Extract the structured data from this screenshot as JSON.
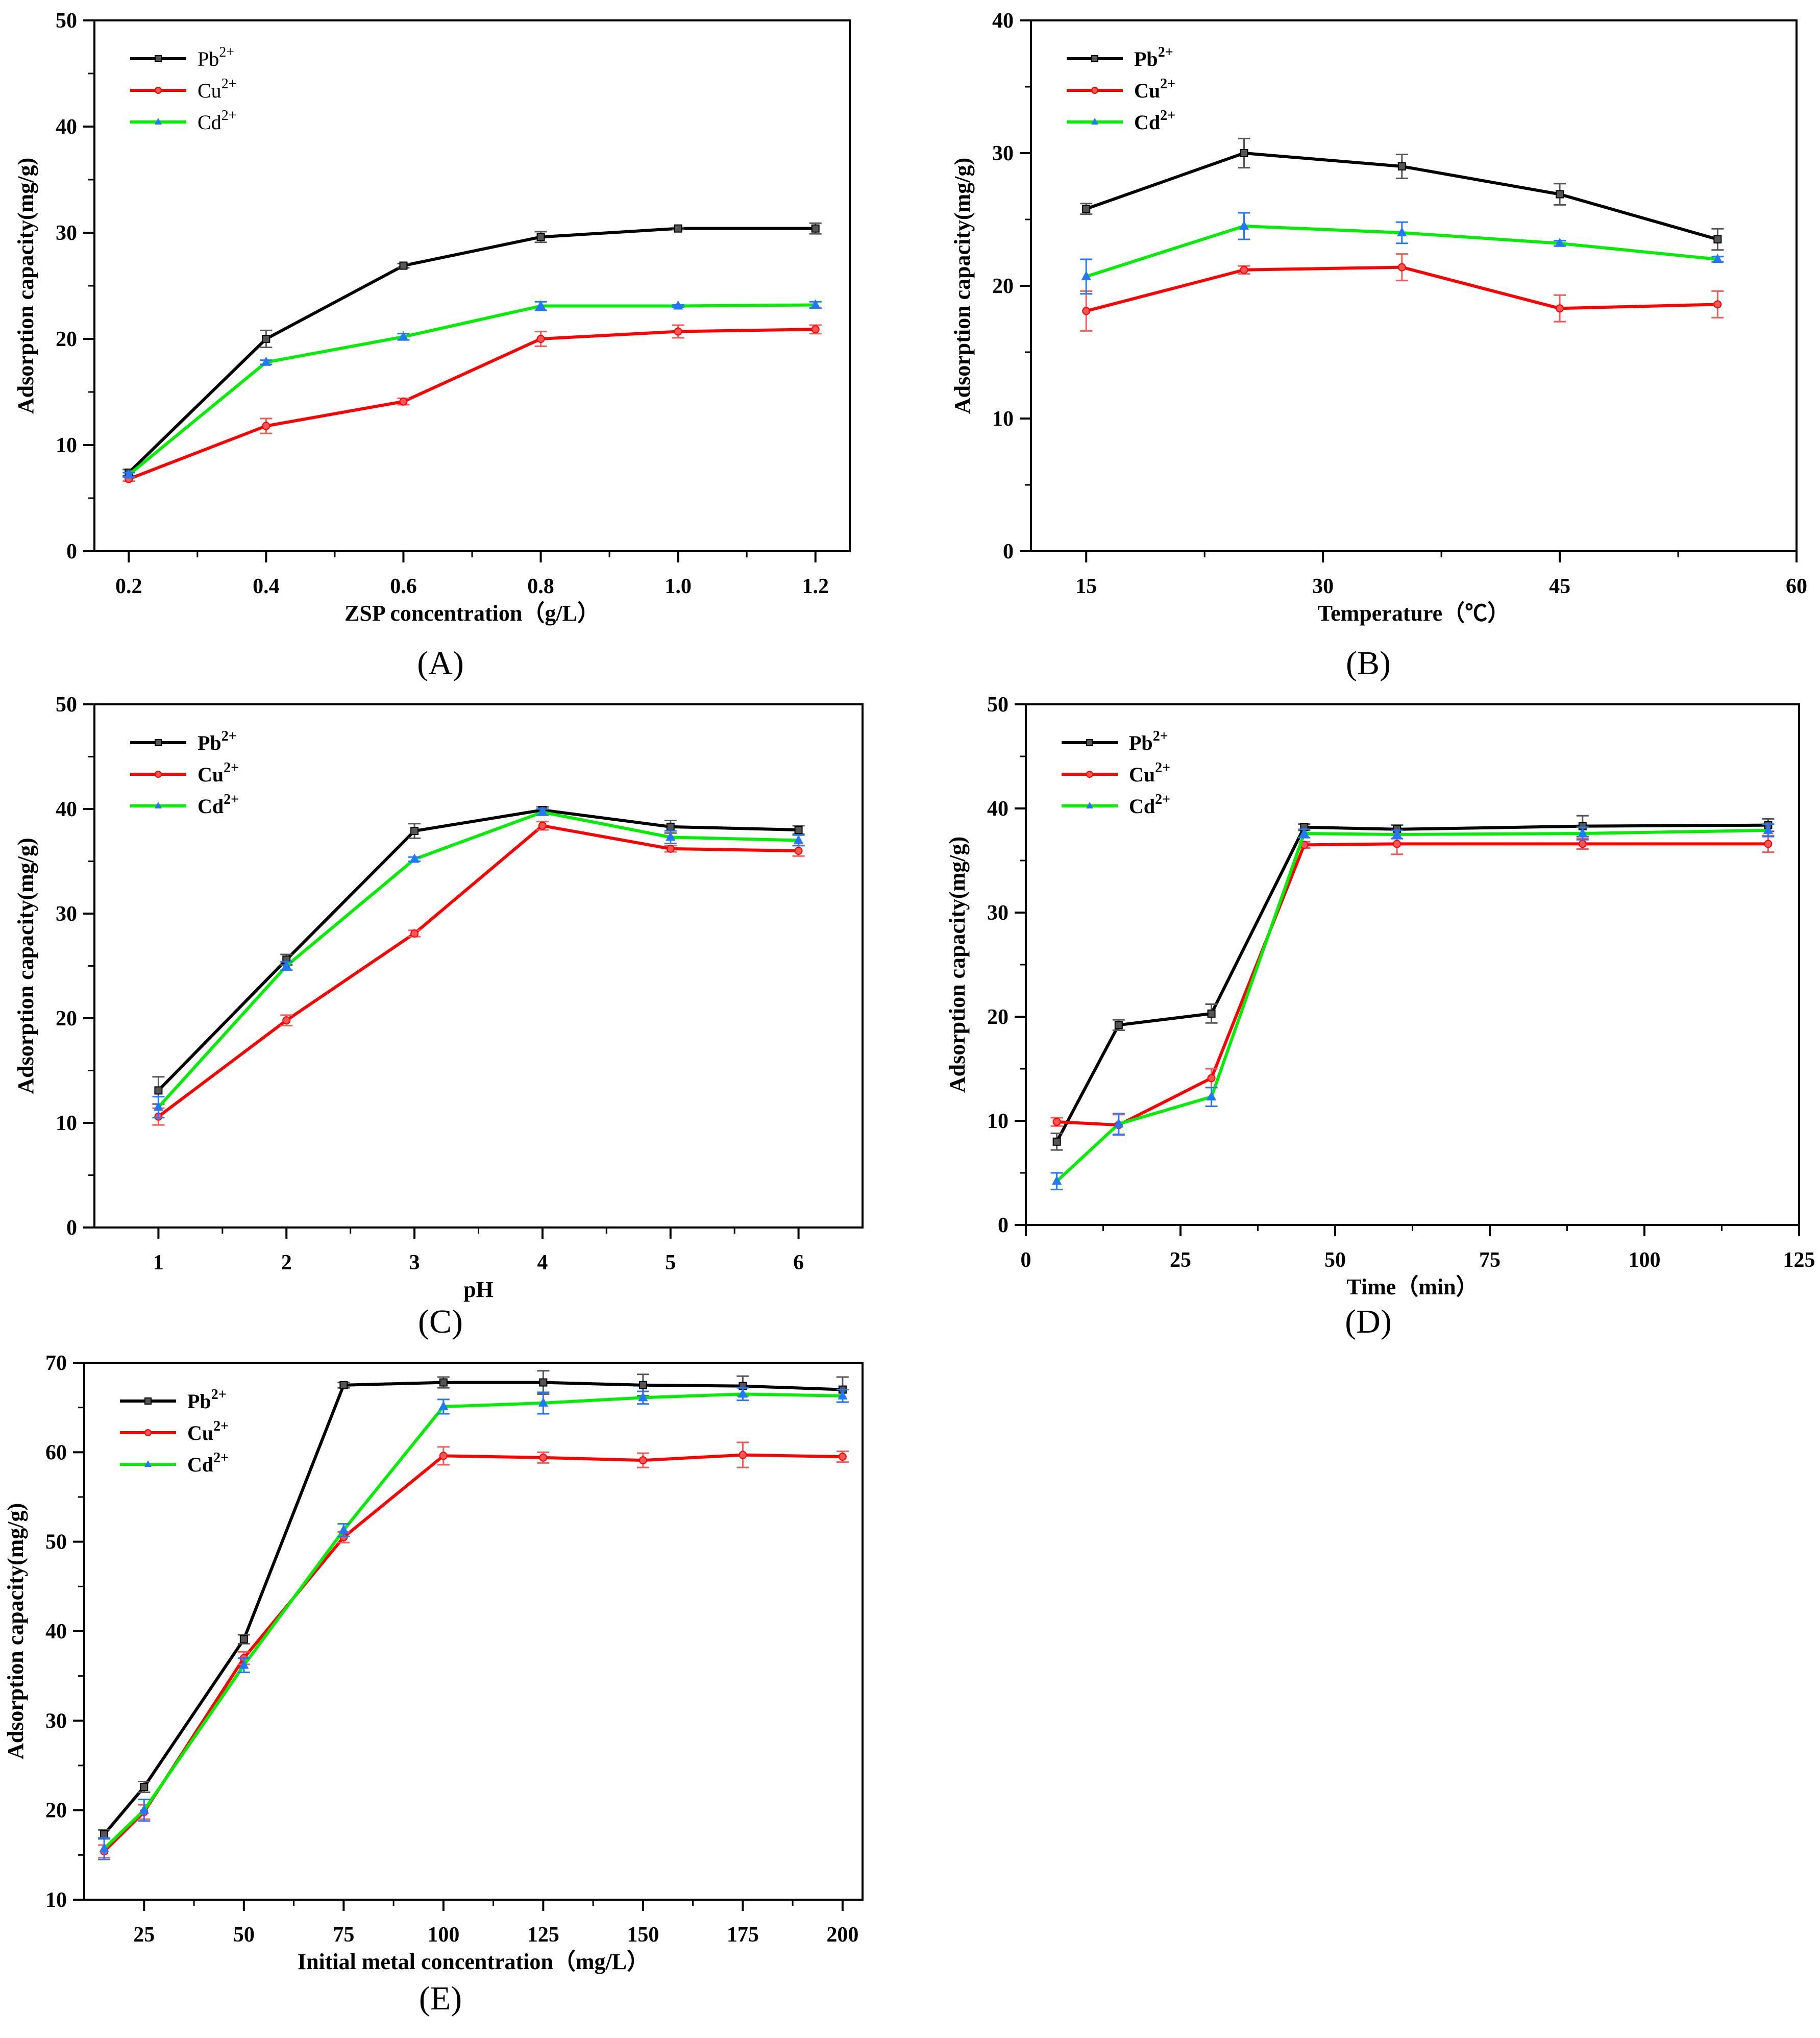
{
  "figure": {
    "panel_labels": [
      "(A)",
      "(B)",
      "(C)",
      "(D)",
      "(E)"
    ]
  },
  "colors": {
    "Pb": "#000000",
    "Cu": "#ff0000",
    "Cd": "#00ee00",
    "errCu": "#ff5555",
    "errCd": "#2277ff",
    "errPb": "#555555"
  },
  "chart_data": [
    {
      "id": "A",
      "type": "line",
      "xlabel": "ZSP concentration（g/L）",
      "ylabel": "Adsorption capacity(mg/g)",
      "xlim": [
        0.15,
        1.25
      ],
      "ylim": [
        0,
        50
      ],
      "xticks": [
        0.2,
        0.4,
        0.6,
        0.8,
        1.0,
        1.2
      ],
      "xtick_labels": [
        "0.2",
        "0.4",
        "0.6",
        "0.8",
        "1.0",
        "1.2"
      ],
      "yticks": [
        0,
        10,
        20,
        30,
        40,
        50
      ],
      "ytick_labels": [
        "0",
        "10",
        "20",
        "30",
        "40",
        "50"
      ],
      "legend": {
        "position": "top-left",
        "bold": false,
        "entries": [
          {
            "base": "Pb",
            "sup": "2+"
          },
          {
            "base": "Cu",
            "sup": "2+"
          },
          {
            "base": "Cd",
            "sup": "2+"
          }
        ]
      },
      "x": [
        0.2,
        0.4,
        0.6,
        0.8,
        1.0,
        1.2
      ],
      "series": [
        {
          "name": "Pb2+",
          "marker": "square",
          "values": [
            7.4,
            20.0,
            26.9,
            29.6,
            30.4,
            30.4
          ],
          "err": [
            0.3,
            0.8,
            0.2,
            0.5,
            0.1,
            0.5
          ]
        },
        {
          "name": "Cu2+",
          "marker": "circle",
          "values": [
            6.8,
            11.8,
            14.1,
            20.0,
            20.7,
            20.9
          ],
          "err": [
            0.2,
            0.7,
            0.3,
            0.7,
            0.6,
            0.4
          ]
        },
        {
          "name": "Cd2+",
          "marker": "triangle",
          "values": [
            7.2,
            17.8,
            20.2,
            23.1,
            23.1,
            23.2
          ],
          "err": [
            0.2,
            0.2,
            0.3,
            0.4,
            0.1,
            0.3
          ]
        }
      ]
    },
    {
      "id": "B",
      "type": "line",
      "xlabel": "Temperature（℃）",
      "ylabel": "Adsorption capacity(mg/g)",
      "xlim": [
        11.5,
        60
      ],
      "ylim": [
        0,
        40
      ],
      "xticks": [
        15,
        30,
        45,
        60
      ],
      "xtick_labels": [
        "15",
        "30",
        "45",
        "60"
      ],
      "yticks": [
        0,
        10,
        20,
        30,
        40
      ],
      "ytick_labels": [
        "0",
        "10",
        "20",
        "30",
        "40"
      ],
      "legend": {
        "position": "top-left",
        "bold": true,
        "entries": [
          {
            "base": "Pb",
            "sup": "2+"
          },
          {
            "base": "Cu",
            "sup": "2+"
          },
          {
            "base": "Cd",
            "sup": "2+"
          }
        ]
      },
      "x": [
        15,
        25,
        35,
        45,
        55
      ],
      "series": [
        {
          "name": "Pb2+",
          "marker": "square",
          "values": [
            25.8,
            30.0,
            29.0,
            26.9,
            23.5
          ],
          "err": [
            0.4,
            1.1,
            0.9,
            0.8,
            0.8
          ]
        },
        {
          "name": "Cu2+",
          "marker": "circle",
          "values": [
            18.1,
            21.2,
            21.4,
            18.3,
            18.6
          ],
          "err": [
            1.5,
            0.3,
            1.0,
            1.0,
            1.0
          ]
        },
        {
          "name": "Cd2+",
          "marker": "triangle",
          "values": [
            20.7,
            24.5,
            24.0,
            23.2,
            22.0
          ],
          "err": [
            1.3,
            1.0,
            0.8,
            0.2,
            0.2
          ]
        }
      ]
    },
    {
      "id": "C",
      "type": "line",
      "xlabel": "pH",
      "ylabel": "Adsorption capacity(mg/g)",
      "xlim": [
        0.5,
        6.5
      ],
      "ylim": [
        0,
        50
      ],
      "xticks": [
        1,
        2,
        3,
        4,
        5,
        6
      ],
      "xtick_labels": [
        "1",
        "2",
        "3",
        "4",
        "5",
        "6"
      ],
      "yticks": [
        0,
        10,
        20,
        30,
        40,
        50
      ],
      "ytick_labels": [
        "0",
        "10",
        "20",
        "30",
        "40",
        "50"
      ],
      "legend": {
        "position": "top-left",
        "bold": true,
        "entries": [
          {
            "base": "Pb",
            "sup": "2+"
          },
          {
            "base": "Cu",
            "sup": "2+"
          },
          {
            "base": "Cd",
            "sup": "2+"
          }
        ]
      },
      "x": [
        1,
        2,
        3,
        4,
        5,
        6
      ],
      "series": [
        {
          "name": "Pb2+",
          "marker": "square",
          "values": [
            13.1,
            25.6,
            37.9,
            39.9,
            38.3,
            38.0
          ],
          "err": [
            1.3,
            0.5,
            0.7,
            0.3,
            0.6,
            0.4
          ]
        },
        {
          "name": "Cu2+",
          "marker": "circle",
          "values": [
            10.6,
            19.8,
            28.1,
            38.4,
            36.2,
            36.0
          ],
          "err": [
            0.8,
            0.5,
            0.3,
            0.4,
            0.3,
            0.5
          ]
        },
        {
          "name": "Cd2+",
          "marker": "triangle",
          "values": [
            11.5,
            25.0,
            35.2,
            39.7,
            37.3,
            37.0
          ],
          "err": [
            1.0,
            0.4,
            0.2,
            0.3,
            0.6,
            0.5
          ]
        }
      ]
    },
    {
      "id": "D",
      "type": "line",
      "xlabel": "Time（min）",
      "ylabel": "Adsorption capacity(mg/g)",
      "xlim": [
        0,
        125
      ],
      "ylim": [
        0,
        50
      ],
      "xticks": [
        0,
        25,
        50,
        75,
        100,
        125
      ],
      "xtick_labels": [
        "0",
        "25",
        "50",
        "75",
        "100",
        "125"
      ],
      "yticks": [
        0,
        10,
        20,
        30,
        40,
        50
      ],
      "ytick_labels": [
        "0",
        "10",
        "20",
        "30",
        "40",
        "50"
      ],
      "legend": {
        "position": "top-left",
        "bold": true,
        "entries": [
          {
            "base": "Pb",
            "sup": "2+"
          },
          {
            "base": "Cu",
            "sup": "2+"
          },
          {
            "base": "Cd",
            "sup": "2+"
          }
        ]
      },
      "x": [
        5,
        15,
        30,
        45,
        60,
        90,
        120
      ],
      "series": [
        {
          "name": "Pb2+",
          "marker": "square",
          "values": [
            8.0,
            19.2,
            20.3,
            38.2,
            38.0,
            38.3,
            38.4
          ],
          "err": [
            0.8,
            0.5,
            0.9,
            0.3,
            0.4,
            1.0,
            0.6
          ]
        },
        {
          "name": "Cu2+",
          "marker": "circle",
          "values": [
            9.9,
            9.6,
            14.1,
            36.5,
            36.6,
            36.6,
            36.6
          ],
          "err": [
            0.4,
            1.0,
            0.9,
            0.3,
            1.0,
            0.5,
            0.8
          ]
        },
        {
          "name": "Cd2+",
          "marker": "triangle",
          "values": [
            4.2,
            9.7,
            12.3,
            37.6,
            37.5,
            37.6,
            37.9
          ],
          "err": [
            0.8,
            1.0,
            0.9,
            0.4,
            0.4,
            0.6,
            0.6
          ]
        }
      ]
    },
    {
      "id": "E",
      "type": "line",
      "xlabel": "Initial metal concentration（mg/L）",
      "ylabel": "Adsorption capacity(mg/g)",
      "xlim": [
        10,
        205
      ],
      "ylim": [
        10,
        70
      ],
      "xticks": [
        25,
        50,
        75,
        100,
        125,
        150,
        175,
        200
      ],
      "xtick_labels": [
        "25",
        "50",
        "75",
        "100",
        "125",
        "150",
        "175",
        "200"
      ],
      "yticks": [
        10,
        20,
        30,
        40,
        50,
        60,
        70
      ],
      "ytick_labels": [
        "10",
        "20",
        "30",
        "40",
        "50",
        "60",
        "70"
      ],
      "legend": {
        "position": "top-left",
        "bold": true,
        "entries": [
          {
            "base": "Pb",
            "sup": "2+"
          },
          {
            "base": "Cu",
            "sup": "2+"
          },
          {
            "base": "Cd",
            "sup": "2+"
          }
        ]
      },
      "x": [
        15,
        25,
        50,
        75,
        100,
        125,
        150,
        175,
        200
      ],
      "series": [
        {
          "name": "Pb2+",
          "marker": "square",
          "values": [
            17.3,
            22.6,
            39.1,
            67.5,
            67.8,
            67.8,
            67.5,
            67.4,
            67.0
          ],
          "err": [
            0.5,
            0.6,
            0.5,
            0.3,
            0.6,
            1.3,
            1.2,
            1.1,
            1.4
          ]
        },
        {
          "name": "Cu2+",
          "marker": "circle",
          "values": [
            15.4,
            19.8,
            37.0,
            50.5,
            59.6,
            59.4,
            59.1,
            59.7,
            59.5
          ],
          "err": [
            0.7,
            0.8,
            0.7,
            0.6,
            1.0,
            0.6,
            0.8,
            1.4,
            0.6
          ]
        },
        {
          "name": "Cd2+",
          "marker": "triangle",
          "values": [
            15.7,
            20.0,
            36.2,
            51.3,
            65.1,
            65.5,
            66.1,
            66.5,
            66.3
          ],
          "err": [
            1.2,
            1.2,
            0.8,
            0.7,
            0.8,
            1.2,
            0.7,
            0.7,
            0.7
          ]
        }
      ]
    }
  ]
}
